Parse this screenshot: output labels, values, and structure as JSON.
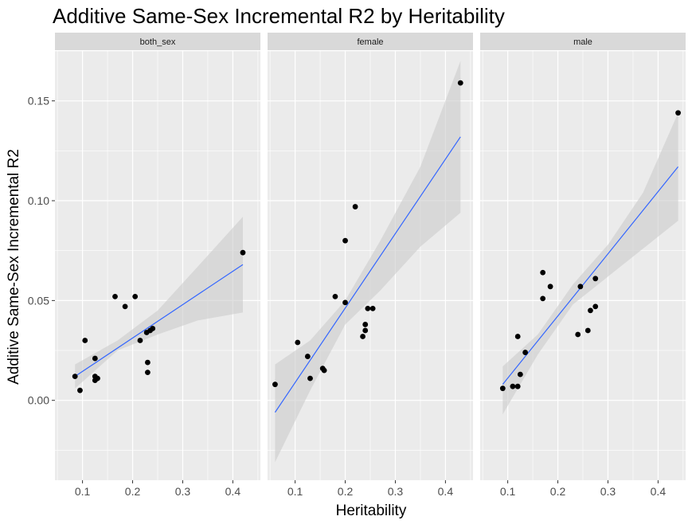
{
  "chart_data": {
    "type": "scatter",
    "title": "Additive Same-Sex Incremental R2 by Heritability",
    "xlabel": "Heritability",
    "ylabel": "Additive Same-Sex Incremental R2",
    "xlim": [
      0.045,
      0.455
    ],
    "ylim": [
      -0.04,
      0.175
    ],
    "x_ticks": [
      0.1,
      0.2,
      0.3,
      0.4
    ],
    "x_tick_labels": [
      "0.1",
      "0.2",
      "0.3",
      "0.4"
    ],
    "y_ticks": [
      0.0,
      0.05,
      0.1,
      0.15
    ],
    "y_tick_labels": [
      "0.00",
      "0.05",
      "0.10",
      "0.15"
    ],
    "grid": true,
    "colors": {
      "panel_bg": "#ebebeb",
      "strip_bg": "#d9d9d9",
      "grid": "#ffffff",
      "point": "#000000",
      "line": "#3366ff",
      "ribbon": "#cccccc"
    },
    "panels": [
      {
        "label": "both_sex",
        "points": [
          [
            0.085,
            0.012
          ],
          [
            0.095,
            0.005
          ],
          [
            0.105,
            0.03
          ],
          [
            0.125,
            0.01
          ],
          [
            0.125,
            0.012
          ],
          [
            0.125,
            0.021
          ],
          [
            0.13,
            0.011
          ],
          [
            0.165,
            0.052
          ],
          [
            0.185,
            0.047
          ],
          [
            0.205,
            0.052
          ],
          [
            0.215,
            0.03
          ],
          [
            0.228,
            0.034
          ],
          [
            0.23,
            0.014
          ],
          [
            0.23,
            0.019
          ],
          [
            0.235,
            0.035
          ],
          [
            0.24,
            0.036
          ],
          [
            0.42,
            0.074
          ]
        ],
        "fit": [
          [
            0.085,
            0.012
          ],
          [
            0.42,
            0.068
          ]
        ],
        "band_upper": [
          [
            0.085,
            0.018
          ],
          [
            0.17,
            0.03
          ],
          [
            0.25,
            0.045
          ],
          [
            0.33,
            0.067
          ],
          [
            0.42,
            0.092
          ]
        ],
        "band_lower": [
          [
            0.085,
            0.006
          ],
          [
            0.17,
            0.025
          ],
          [
            0.25,
            0.033
          ],
          [
            0.33,
            0.04
          ],
          [
            0.42,
            0.044
          ]
        ]
      },
      {
        "label": "female",
        "points": [
          [
            0.06,
            0.008
          ],
          [
            0.105,
            0.029
          ],
          [
            0.125,
            0.022
          ],
          [
            0.13,
            0.011
          ],
          [
            0.155,
            0.016
          ],
          [
            0.158,
            0.015
          ],
          [
            0.18,
            0.052
          ],
          [
            0.2,
            0.08
          ],
          [
            0.2,
            0.049
          ],
          [
            0.22,
            0.097
          ],
          [
            0.235,
            0.032
          ],
          [
            0.24,
            0.035
          ],
          [
            0.24,
            0.038
          ],
          [
            0.245,
            0.046
          ],
          [
            0.255,
            0.046
          ],
          [
            0.43,
            0.159
          ]
        ],
        "fit": [
          [
            0.06,
            -0.006
          ],
          [
            0.43,
            0.132
          ]
        ],
        "band_upper": [
          [
            0.06,
            0.018
          ],
          [
            0.13,
            0.03
          ],
          [
            0.2,
            0.05
          ],
          [
            0.27,
            0.08
          ],
          [
            0.35,
            0.117
          ],
          [
            0.43,
            0.17
          ]
        ],
        "band_lower": [
          [
            0.06,
            -0.031
          ],
          [
            0.13,
            0.005
          ],
          [
            0.2,
            0.038
          ],
          [
            0.27,
            0.055
          ],
          [
            0.35,
            0.077
          ],
          [
            0.43,
            0.094
          ]
        ]
      },
      {
        "label": "male",
        "points": [
          [
            0.09,
            0.006
          ],
          [
            0.11,
            0.007
          ],
          [
            0.12,
            0.007
          ],
          [
            0.12,
            0.032
          ],
          [
            0.125,
            0.013
          ],
          [
            0.135,
            0.024
          ],
          [
            0.17,
            0.064
          ],
          [
            0.17,
            0.051
          ],
          [
            0.185,
            0.057
          ],
          [
            0.24,
            0.033
          ],
          [
            0.245,
            0.057
          ],
          [
            0.26,
            0.035
          ],
          [
            0.265,
            0.045
          ],
          [
            0.275,
            0.061
          ],
          [
            0.275,
            0.047
          ],
          [
            0.44,
            0.144
          ]
        ],
        "fit": [
          [
            0.09,
            0.008
          ],
          [
            0.44,
            0.117
          ]
        ],
        "band_upper": [
          [
            0.09,
            0.017
          ],
          [
            0.16,
            0.033
          ],
          [
            0.23,
            0.058
          ],
          [
            0.3,
            0.078
          ],
          [
            0.37,
            0.104
          ],
          [
            0.44,
            0.144
          ]
        ],
        "band_lower": [
          [
            0.09,
            -0.007
          ],
          [
            0.16,
            0.023
          ],
          [
            0.23,
            0.048
          ],
          [
            0.3,
            0.062
          ],
          [
            0.37,
            0.076
          ],
          [
            0.44,
            0.09
          ]
        ]
      }
    ]
  }
}
